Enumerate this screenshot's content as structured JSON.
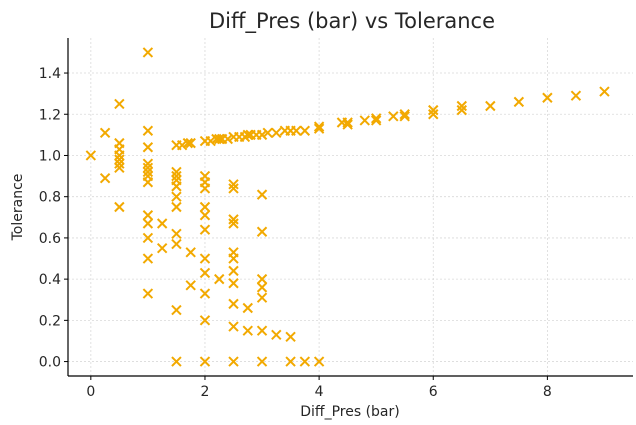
{
  "chart_data": {
    "type": "scatter",
    "title": "Diff_Pres (bar) vs Tolerance",
    "xlabel": "Diff_Pres (bar)",
    "ylabel": "Tolerance",
    "xlim": [
      -0.4,
      9.5
    ],
    "ylim": [
      -0.07,
      1.57
    ],
    "xticks": [
      0,
      2,
      4,
      6,
      8
    ],
    "xtick_labels": [
      "0",
      "2",
      "4",
      "6",
      "8"
    ],
    "yticks": [
      0.0,
      0.2,
      0.4,
      0.6,
      0.8,
      1.0,
      1.2,
      1.4
    ],
    "ytick_labels": [
      "0.0",
      "0.2",
      "0.4",
      "0.6",
      "0.8",
      "1.0",
      "1.2",
      "1.4"
    ],
    "grid": true,
    "marker": "x",
    "color": "#F2A900",
    "series": [
      {
        "name": "Tolerance",
        "points": [
          [
            0.0,
            1.0
          ],
          [
            0.25,
            1.11
          ],
          [
            0.25,
            0.89
          ],
          [
            0.5,
            1.25
          ],
          [
            0.5,
            1.06
          ],
          [
            0.5,
            1.03
          ],
          [
            0.5,
            1.0
          ],
          [
            0.5,
            0.98
          ],
          [
            0.5,
            0.96
          ],
          [
            0.5,
            0.94
          ],
          [
            0.5,
            0.75
          ],
          [
            1.0,
            1.5
          ],
          [
            1.0,
            1.12
          ],
          [
            1.0,
            1.04
          ],
          [
            1.0,
            0.96
          ],
          [
            1.0,
            0.94
          ],
          [
            1.0,
            0.92
          ],
          [
            1.0,
            0.9
          ],
          [
            1.0,
            0.87
          ],
          [
            1.0,
            0.71
          ],
          [
            1.0,
            0.67
          ],
          [
            1.0,
            0.6
          ],
          [
            1.0,
            0.5
          ],
          [
            1.0,
            0.33
          ],
          [
            1.25,
            0.67
          ],
          [
            1.25,
            0.55
          ],
          [
            1.5,
            1.05
          ],
          [
            1.5,
            0.92
          ],
          [
            1.5,
            0.9
          ],
          [
            1.5,
            0.88
          ],
          [
            1.5,
            0.85
          ],
          [
            1.5,
            0.8
          ],
          [
            1.5,
            0.75
          ],
          [
            1.5,
            0.62
          ],
          [
            1.5,
            0.57
          ],
          [
            1.5,
            0.25
          ],
          [
            1.5,
            0.0
          ],
          [
            1.6,
            1.05
          ],
          [
            1.7,
            1.06
          ],
          [
            1.75,
            1.06
          ],
          [
            1.75,
            0.53
          ],
          [
            1.75,
            0.37
          ],
          [
            2.0,
            1.07
          ],
          [
            2.0,
            0.9
          ],
          [
            2.0,
            0.87
          ],
          [
            2.0,
            0.84
          ],
          [
            2.0,
            0.75
          ],
          [
            2.0,
            0.71
          ],
          [
            2.0,
            0.64
          ],
          [
            2.0,
            0.5
          ],
          [
            2.0,
            0.43
          ],
          [
            2.0,
            0.33
          ],
          [
            2.0,
            0.2
          ],
          [
            2.0,
            0.0
          ],
          [
            2.1,
            1.07
          ],
          [
            2.2,
            1.08
          ],
          [
            2.25,
            1.08
          ],
          [
            2.25,
            0.4
          ],
          [
            2.3,
            1.08
          ],
          [
            2.4,
            1.08
          ],
          [
            2.5,
            1.09
          ],
          [
            2.5,
            0.86
          ],
          [
            2.5,
            0.84
          ],
          [
            2.5,
            0.69
          ],
          [
            2.5,
            0.67
          ],
          [
            2.5,
            0.53
          ],
          [
            2.5,
            0.5
          ],
          [
            2.5,
            0.44
          ],
          [
            2.5,
            0.38
          ],
          [
            2.5,
            0.28
          ],
          [
            2.5,
            0.17
          ],
          [
            2.5,
            0.0
          ],
          [
            2.6,
            1.09
          ],
          [
            2.7,
            1.09
          ],
          [
            2.75,
            1.1
          ],
          [
            2.75,
            0.26
          ],
          [
            2.75,
            0.15
          ],
          [
            2.8,
            1.1
          ],
          [
            2.9,
            1.1
          ],
          [
            3.0,
            1.1
          ],
          [
            3.0,
            0.81
          ],
          [
            3.0,
            0.63
          ],
          [
            3.0,
            0.4
          ],
          [
            3.0,
            0.36
          ],
          [
            3.0,
            0.31
          ],
          [
            3.0,
            0.15
          ],
          [
            3.0,
            0.0
          ],
          [
            3.1,
            1.11
          ],
          [
            3.25,
            1.11
          ],
          [
            3.25,
            0.13
          ],
          [
            3.4,
            1.12
          ],
          [
            3.5,
            1.12
          ],
          [
            3.5,
            0.12
          ],
          [
            3.5,
            0.0
          ],
          [
            3.6,
            1.12
          ],
          [
            3.75,
            1.12
          ],
          [
            3.75,
            0.0
          ],
          [
            4.0,
            1.14
          ],
          [
            4.0,
            1.13
          ],
          [
            4.0,
            0.0
          ],
          [
            4.4,
            1.16
          ],
          [
            4.5,
            1.16
          ],
          [
            4.5,
            1.15
          ],
          [
            4.8,
            1.17
          ],
          [
            5.0,
            1.18
          ],
          [
            5.0,
            1.17
          ],
          [
            5.3,
            1.19
          ],
          [
            5.5,
            1.2
          ],
          [
            5.5,
            1.19
          ],
          [
            6.0,
            1.22
          ],
          [
            6.0,
            1.2
          ],
          [
            6.5,
            1.24
          ],
          [
            6.5,
            1.22
          ],
          [
            7.0,
            1.24
          ],
          [
            7.5,
            1.26
          ],
          [
            8.0,
            1.28
          ],
          [
            8.5,
            1.29
          ],
          [
            9.0,
            1.31
          ]
        ]
      }
    ]
  }
}
